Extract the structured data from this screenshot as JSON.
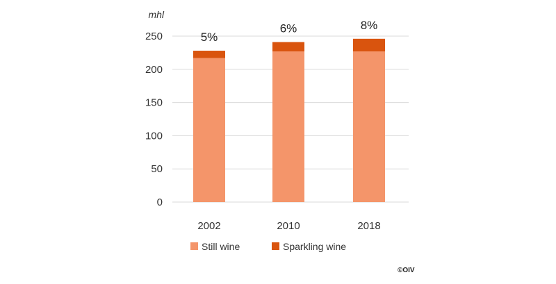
{
  "chart_data": {
    "type": "bar",
    "stacked": true,
    "categories": [
      "2002",
      "2010",
      "2018"
    ],
    "series": [
      {
        "name": "Still wine",
        "values": [
          217,
          227,
          227
        ],
        "color": "#f4956a"
      },
      {
        "name": "Sparkling wine",
        "values": [
          11,
          14,
          19
        ],
        "color": "#d9540e"
      }
    ],
    "data_labels": [
      "5%",
      "6%",
      "8%"
    ],
    "ylabel": "mhl",
    "ylim": [
      0,
      250
    ],
    "yticks": [
      0,
      50,
      100,
      150,
      200,
      250
    ],
    "grid": true,
    "legend_position": "bottom"
  },
  "source": "©OIV"
}
